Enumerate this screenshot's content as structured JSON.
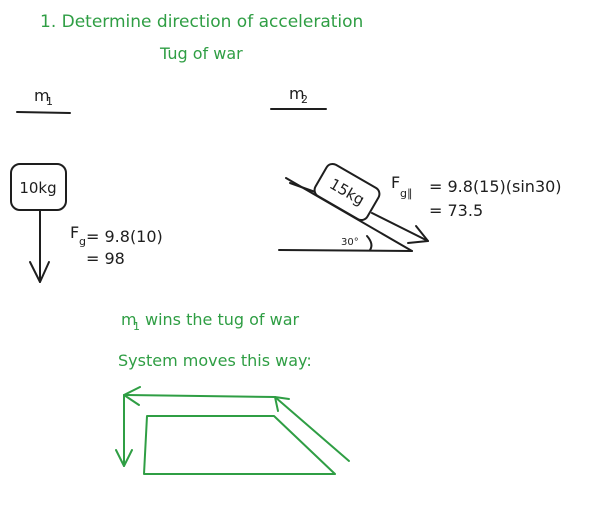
{
  "notes": {
    "title": "1. Determine direction of acceleration",
    "subtitle": "Tug of war",
    "winner_prefix": "m",
    "winner_sub": "1",
    "winner_text": "wins the tug of war",
    "system_text": "System moves this way:"
  },
  "mass1": {
    "label": "m",
    "sub": "1",
    "box_text": "10kg",
    "force_label": "F",
    "force_sub": "g",
    "force_eq": "= 9.8(10)",
    "force_result": "= 98"
  },
  "mass2": {
    "label": "m",
    "sub": "2",
    "box_text": "15kg",
    "force_label": "F",
    "force_sub": "g∥",
    "force_eq": "= 9.8(15)(sin30)",
    "force_result": "= 73.5",
    "angle_label": "30°"
  },
  "colors": {
    "ink": "#1e1e1e",
    "green": "#2f9e44"
  }
}
